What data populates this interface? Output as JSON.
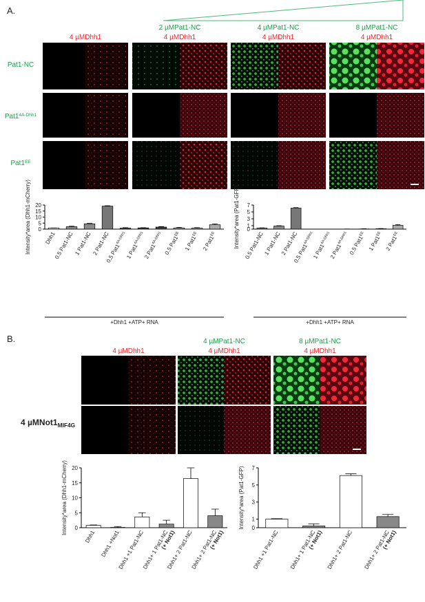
{
  "panel_a": {
    "label": "A.",
    "headers": [
      [
        "4 µMDhh1"
      ],
      [
        "2 µMPat1-NC",
        "4 µMDhh1"
      ],
      [
        "4 µMPat1-NC",
        "4 µMDhh1"
      ],
      [
        "8 µMPat1-NC",
        "4 µMDhh1"
      ]
    ],
    "rows": [
      {
        "name": "Pat1-NC",
        "sup": null
      },
      {
        "name": "Pat1",
        "sup": "4A-Dhh1"
      },
      {
        "name": "Pat1",
        "sup": "EE"
      }
    ]
  },
  "panel_b": {
    "label": "B.",
    "headers": [
      [
        "4 µMDhh1"
      ],
      [
        "4 µMPat1-NC",
        "4 µMDhh1"
      ],
      [
        "8 µMPat1-NC",
        "4 µMDhh1"
      ]
    ],
    "row_label": {
      "name": "4 µMNot1",
      "sub": "MIF4G"
    }
  },
  "chart_data": [
    {
      "type": "bar",
      "ylabel": "Intensity*area (Dhh1-mCherry)",
      "xlabel": "+Dhh1 +ATP+ RNA",
      "categories": [
        "Dhh1",
        "0.5 Pat1-NC",
        "1 Pat1-NC",
        "2 Pat1-NC",
        "0.5 Pat1",
        "1 Pat1",
        "2 Pat1",
        "0.5 Pat1",
        "1 Pat1",
        "2 Pat1"
      ],
      "category_superscripts": [
        null,
        null,
        null,
        null,
        "4A-Dhh1",
        "4A-Dhh1",
        "4A-Dhh1",
        "EE",
        "EE",
        "EE"
      ],
      "values": [
        0.9,
        2.0,
        4.4,
        19.1,
        0.8,
        1.0,
        1.7,
        1.0,
        0.8,
        3.6
      ],
      "errors": [
        0.1,
        0.4,
        0.4,
        0.3,
        0.4,
        0.2,
        0.4,
        0.5,
        0.4,
        0.6
      ],
      "colors": [
        "#ffffff",
        "#8a8a8a",
        "#8a8a8a",
        "#777777",
        "#444444",
        "#444444",
        "#444444",
        "#aaaaaa",
        "#aaaaaa",
        "#aaaaaa"
      ],
      "ylim": [
        0,
        20
      ],
      "yticks": [
        0,
        5,
        10,
        15,
        20
      ]
    },
    {
      "type": "bar",
      "ylabel": "Intensity*area (Pat1-GFP)",
      "xlabel": "+Dhh1 +ATP+ RNA",
      "categories": [
        "0.5 Pat1-NC",
        "1 Pat1-NC",
        "2 Pat1-NC",
        "0.5 Pat1",
        "1 Pat1",
        "2 Pat1",
        "0.5 Pat1",
        "1 Pat1",
        "2 Pat1"
      ],
      "category_superscripts": [
        null,
        null,
        null,
        "4A-Dhh1",
        "4A-Dhh1",
        "4A-Dhh1",
        "EE",
        "EE",
        "EE"
      ],
      "values": [
        0.3,
        0.9,
        6.1,
        0.02,
        0.02,
        0.03,
        0.05,
        0.1,
        1.1
      ],
      "errors": [
        0.08,
        0.1,
        0.15,
        0.01,
        0.01,
        0.02,
        0.04,
        0.08,
        0.2
      ],
      "colors": [
        "#8a8a8a",
        "#8a8a8a",
        "#777777",
        "#444444",
        "#444444",
        "#444444",
        "#aaaaaa",
        "#aaaaaa",
        "#aaaaaa"
      ],
      "ylim": [
        0,
        7
      ],
      "yticks": [
        0,
        1,
        3,
        5,
        7
      ]
    },
    {
      "type": "bar",
      "ylabel": "Intensity*area (Dhh1-mCherry)",
      "categories": [
        "Dhh1",
        "Dhh1 +Not1",
        "Dhh1 +1 Pat1-NC",
        "Dhh1+ 1 Pat1-NC",
        "Dhh1+ 2 Pat1-NC",
        "Dhh1+ 2 Pat1-NC"
      ],
      "category_notes": [
        null,
        null,
        null,
        "(+ Not1)",
        null,
        "(+ Not1)"
      ],
      "values": [
        0.8,
        0.1,
        3.6,
        1.2,
        16.4,
        4.0
      ],
      "errors": [
        0.1,
        0.3,
        1.4,
        1.3,
        3.6,
        2.2
      ],
      "colors": [
        "#ffffff",
        "#888888",
        "#ffffff",
        "#888888",
        "#ffffff",
        "#888888"
      ],
      "ylim": [
        0,
        20
      ],
      "yticks": [
        0,
        5,
        10,
        15,
        20
      ]
    },
    {
      "type": "bar",
      "ylabel": "Intensity*area (Pat1-GFP)",
      "categories": [
        "Dhh1 +1 Pat1-NC",
        "Dhh1+ 1 Pat1-NC",
        "Dhh1+ 2 Pat1-NC",
        "Dhh1+ 2 Pat1-NC"
      ],
      "category_notes": [
        null,
        "(+ Not1)",
        null,
        "(+ Not1)"
      ],
      "values": [
        1.0,
        0.2,
        6.1,
        1.3
      ],
      "errors": [
        0.05,
        0.25,
        0.2,
        0.25
      ],
      "colors": [
        "#ffffff",
        "#888888",
        "#ffffff",
        "#888888"
      ],
      "ylim": [
        0,
        7
      ],
      "yticks": [
        0,
        1,
        3,
        5,
        7
      ]
    }
  ]
}
